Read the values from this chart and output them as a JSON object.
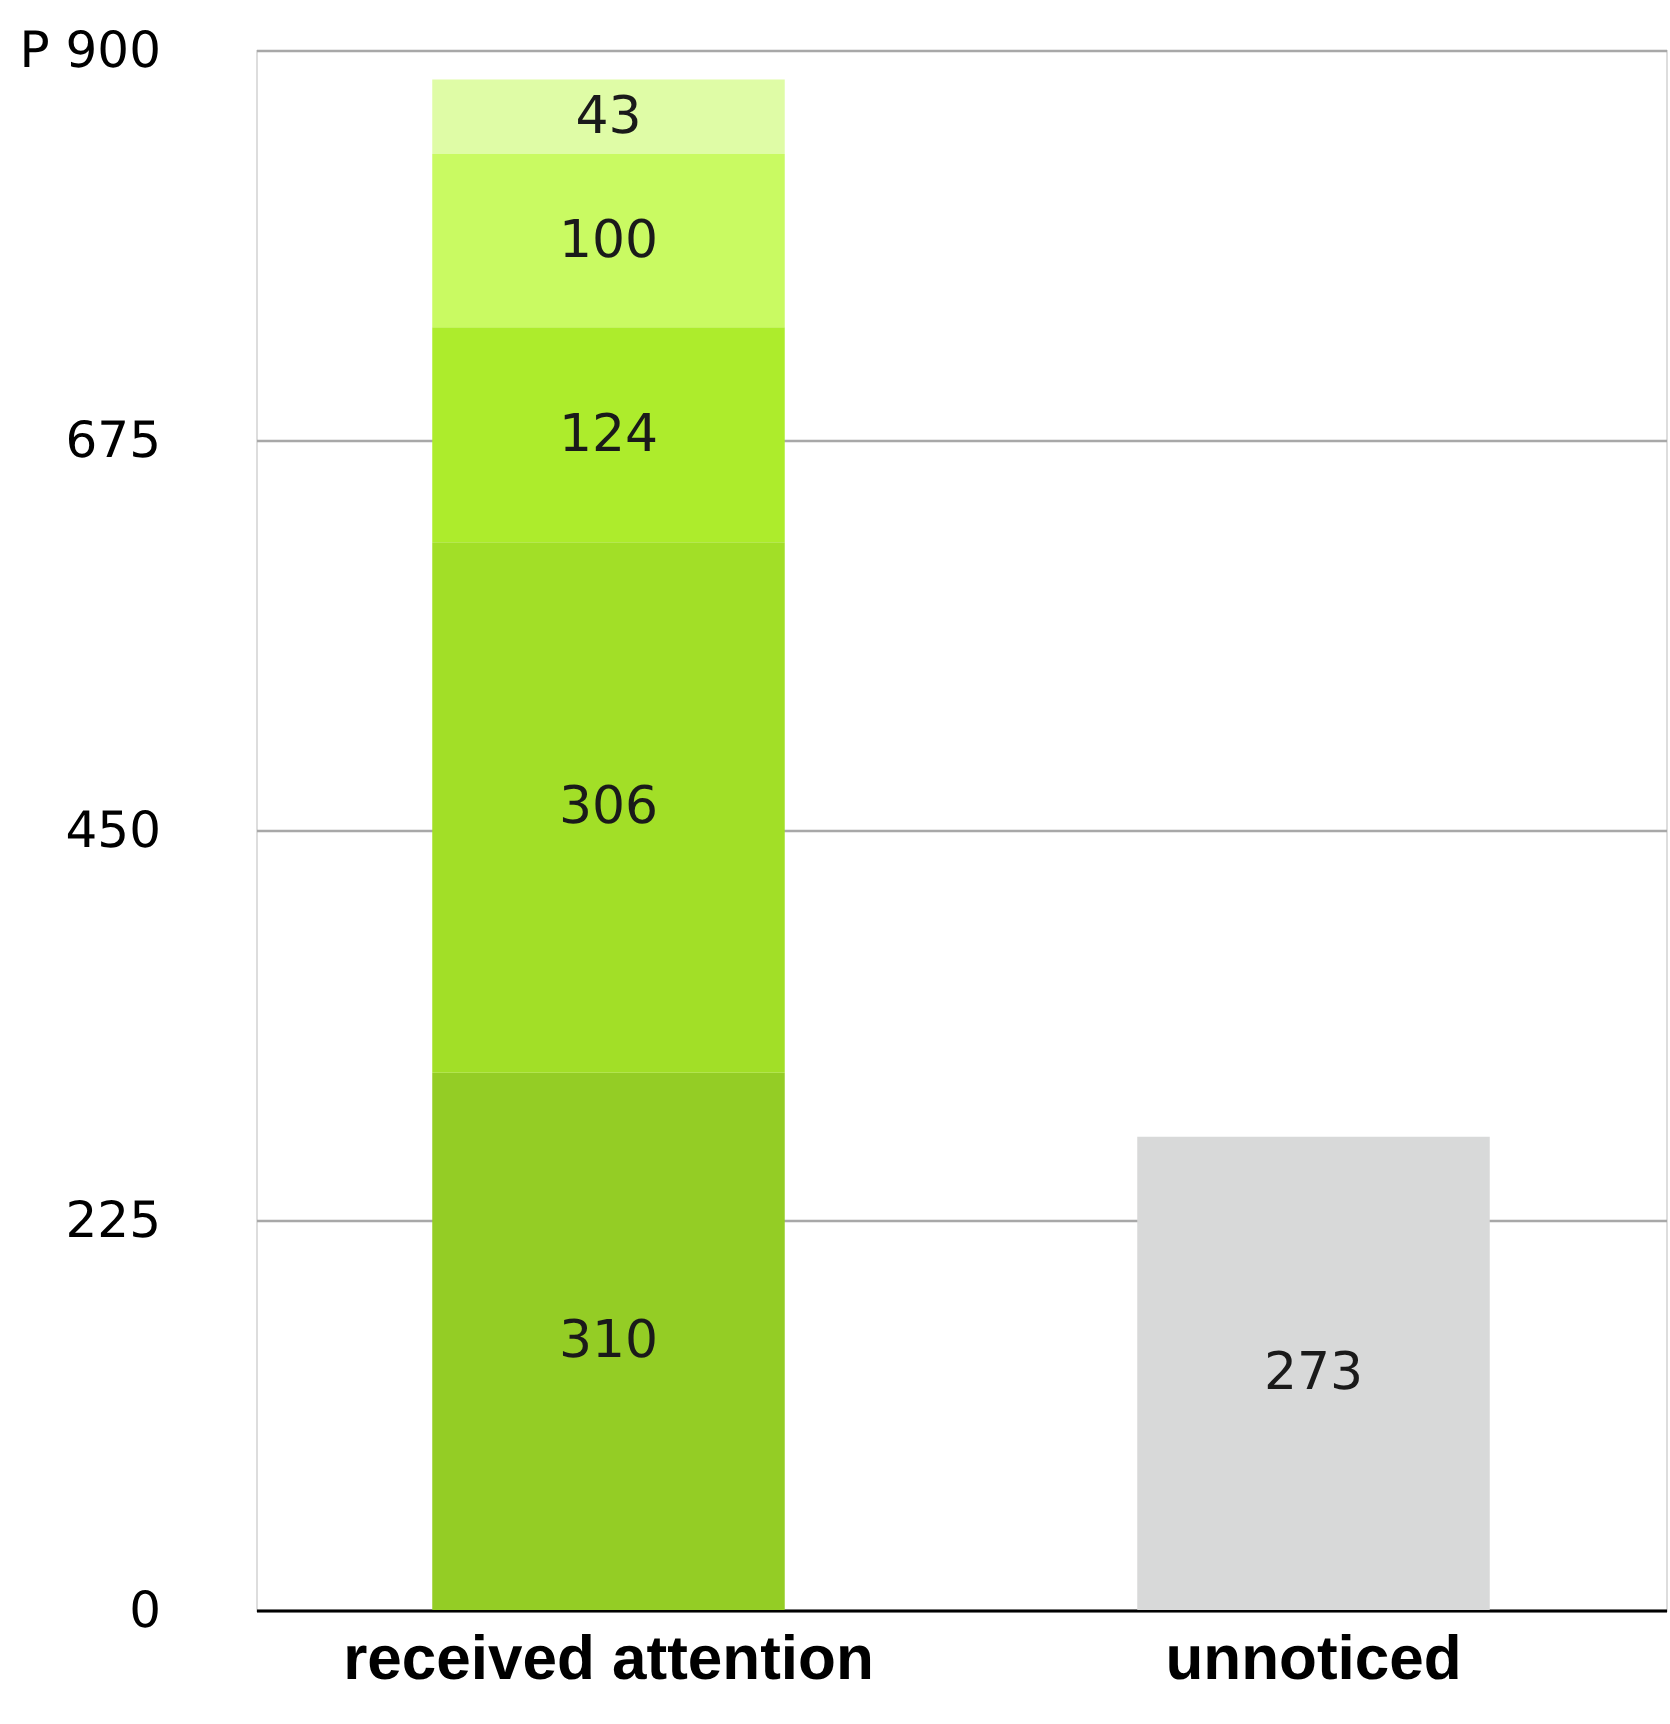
{
  "chart_data": {
    "type": "bar",
    "stacked": true,
    "categories": [
      "received attention",
      "unnoticed"
    ],
    "series": [
      {
        "color": "#94cd25",
        "colors": [
          null,
          "#d8d9d9"
        ],
        "values": [
          310,
          273
        ]
      },
      {
        "color": "#a2df27",
        "values": [
          306,
          null
        ]
      },
      {
        "color": "#adec2c",
        "values": [
          124,
          null
        ]
      },
      {
        "color": "#c9fa62",
        "values": [
          100,
          null
        ]
      },
      {
        "color": "#dffca6",
        "values": [
          43,
          null
        ]
      }
    ],
    "ylim": [
      0,
      900
    ],
    "yticks": [
      0,
      225,
      450,
      675,
      {
        "value": 900,
        "label": "P 900"
      }
    ],
    "grid": "y",
    "data_labels": true
  }
}
